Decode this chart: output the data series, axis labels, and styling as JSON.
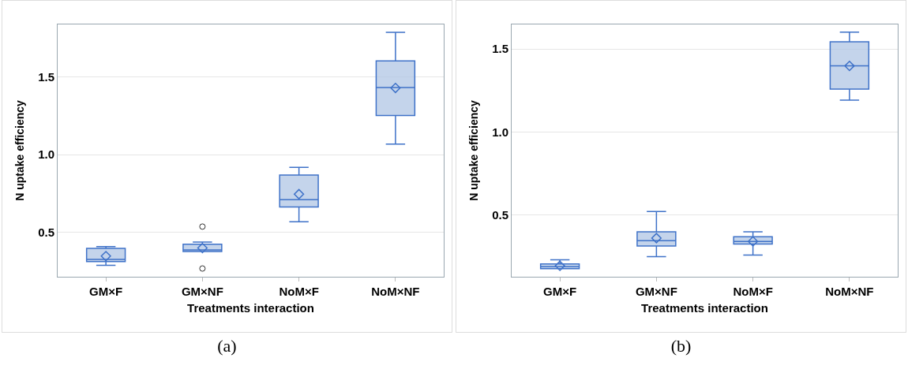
{
  "chart_data": [
    {
      "type": "box",
      "xlabel": "Treatments interaction",
      "ylabel": "N uptake efficiency",
      "categories": [
        "GM×F",
        "GM×NF",
        "NoM×F",
        "NoM×NF"
      ],
      "ylim": [
        0.214,
        1.839
      ],
      "yticks": [
        {
          "value": 0.5,
          "label": "0.5"
        },
        {
          "value": 1,
          "label": "1.0"
        },
        {
          "value": 1.5,
          "label": "1.5"
        }
      ],
      "grid": "y",
      "annotations": [
        "(a)"
      ],
      "series": [
        {
          "color": "#3f72c8",
          "boxes": [
            {
              "low": 0.287,
              "q1": 0.312,
              "median": 0.326,
              "q3": 0.397,
              "high": 0.408,
              "mean": 0.347
            },
            {
              "low": 0.376,
              "q1": 0.376,
              "median": 0.387,
              "q3": 0.424,
              "high": 0.438,
              "mean": 0.399,
              "outliers": [
                0.537,
                0.267
              ]
            },
            {
              "low": 0.568,
              "q1": 0.664,
              "median": 0.71,
              "q3": 0.869,
              "high": 0.918,
              "mean": 0.746
            },
            {
              "low": 1.069,
              "q1": 1.253,
              "median": 1.433,
              "q3": 1.604,
              "high": 1.788,
              "mean": 1.43
            }
          ]
        }
      ]
    },
    {
      "type": "box",
      "xlabel": "Treatments interaction",
      "ylabel": "N uptake efficiency",
      "categories": [
        "GM×F",
        "GM×NF",
        "NoM×F",
        "NoM×NF"
      ],
      "ylim": [
        0.127,
        1.648
      ],
      "yticks": [
        {
          "value": 0.5,
          "label": "0.5"
        },
        {
          "value": 1,
          "label": "1.0"
        },
        {
          "value": 1.5,
          "label": "1.5"
        }
      ],
      "grid": "y",
      "annotations": [
        "(b)"
      ],
      "series": [
        {
          "color": "#3f72c8",
          "boxes": [
            {
              "low": 0.176,
              "q1": 0.176,
              "median": 0.188,
              "q3": 0.204,
              "high": 0.229,
              "mean": 0.193
            },
            {
              "low": 0.248,
              "q1": 0.312,
              "median": 0.344,
              "q3": 0.398,
              "high": 0.52,
              "mean": 0.36
            },
            {
              "low": 0.258,
              "q1": 0.324,
              "median": 0.34,
              "q3": 0.368,
              "high": 0.398,
              "mean": 0.34
            },
            {
              "low": 1.192,
              "q1": 1.258,
              "median": 1.398,
              "q3": 1.543,
              "high": 1.602,
              "mean": 1.398
            }
          ]
        }
      ]
    }
  ]
}
